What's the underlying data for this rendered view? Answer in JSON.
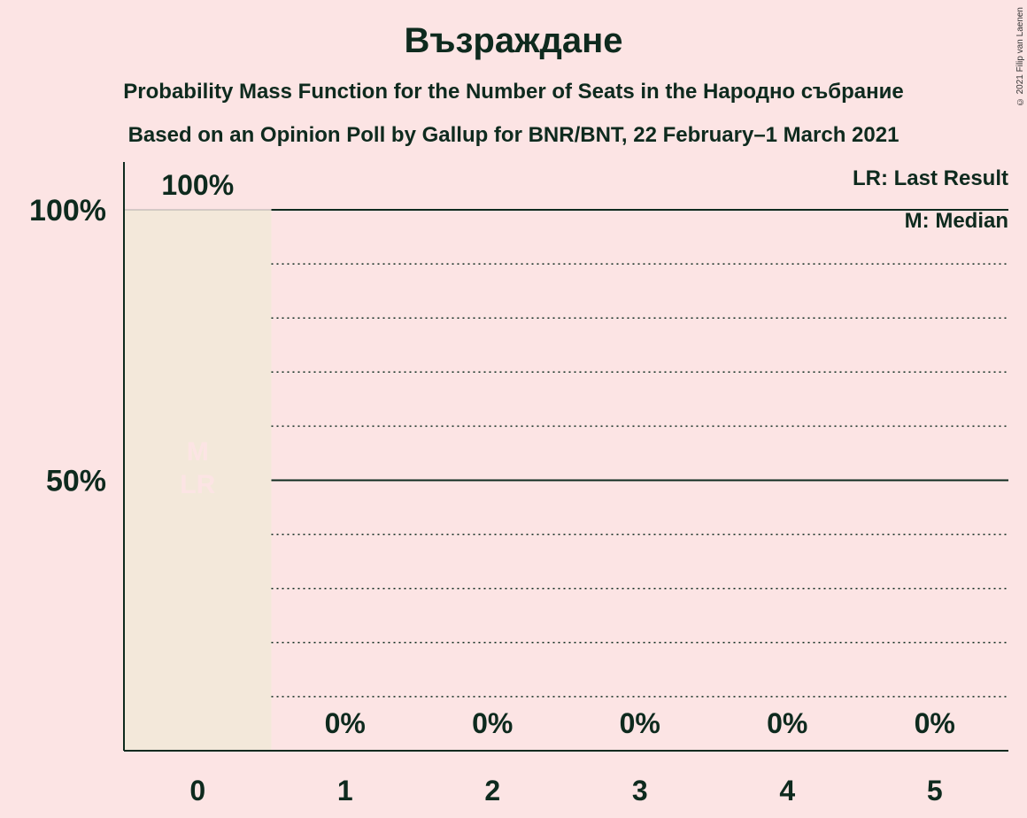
{
  "title": "Възраждане",
  "subtitle1": "Probability Mass Function for the Number of Seats in the Народно събрание",
  "subtitle2": "Based on an Opinion Poll by Gallup for BNR/BNT, 22 February–1 March 2021",
  "copyright": "© 2021 Filip van Laenen",
  "legend": {
    "last_result": "LR: Last Result",
    "median": "M: Median"
  },
  "colors": {
    "background": "#fce4e4",
    "bar": "#f3e8da",
    "text": "#0e2a1e",
    "marker_text": "#fce4e4"
  },
  "chart_data": {
    "type": "bar",
    "categories": [
      "0",
      "1",
      "2",
      "3",
      "4",
      "5"
    ],
    "values": [
      100,
      0,
      0,
      0,
      0,
      0
    ],
    "value_labels": [
      "100%",
      "0%",
      "0%",
      "0%",
      "0%",
      "0%"
    ],
    "ylim": [
      0,
      110
    ],
    "y_ticks": [
      {
        "value": 50,
        "label": "50%"
      },
      {
        "value": 100,
        "label": "100%"
      }
    ],
    "minor_gridlines": [
      10,
      20,
      30,
      40,
      60,
      70,
      80,
      90
    ],
    "major_gridlines": [
      50,
      100
    ],
    "median": "0",
    "last_result": "0",
    "median_marker": "M",
    "last_result_marker": "LR",
    "legend_position": "top-right"
  }
}
